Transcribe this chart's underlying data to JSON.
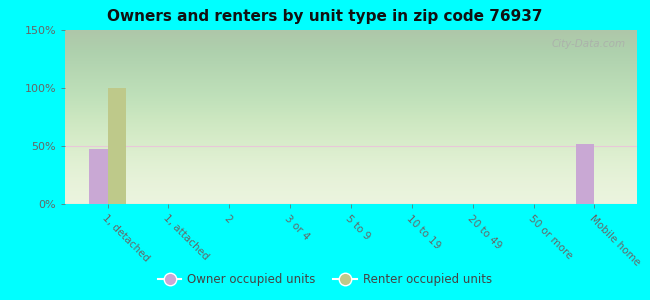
{
  "title": "Owners and renters by unit type in zip code 76937",
  "categories": [
    "1, detached",
    "1, attached",
    "2",
    "3 or 4",
    "5 to 9",
    "10 to 19",
    "20 to 49",
    "50 or more",
    "Mobile home"
  ],
  "owner_values": [
    47,
    0,
    0,
    0,
    0,
    0,
    0,
    0,
    52
  ],
  "renter_values": [
    100,
    0,
    0,
    0,
    0,
    0,
    0,
    0,
    0
  ],
  "owner_color": "#c9a8d4",
  "renter_color": "#bec98a",
  "background_outer": "#00ffff",
  "background_inner_top": "#f0f5e0",
  "background_inner_bottom": "#d8ecc0",
  "ylim": [
    0,
    150
  ],
  "yticks": [
    0,
    50,
    100,
    150
  ],
  "ytick_labels": [
    "0%",
    "50%",
    "100%",
    "150%"
  ],
  "bar_width": 0.3,
  "legend_owner": "Owner occupied units",
  "legend_renter": "Renter occupied units",
  "grid_color": "#e8c8d8",
  "watermark": "City-Data.com",
  "tick_color": "#666666",
  "title_color": "#111111"
}
